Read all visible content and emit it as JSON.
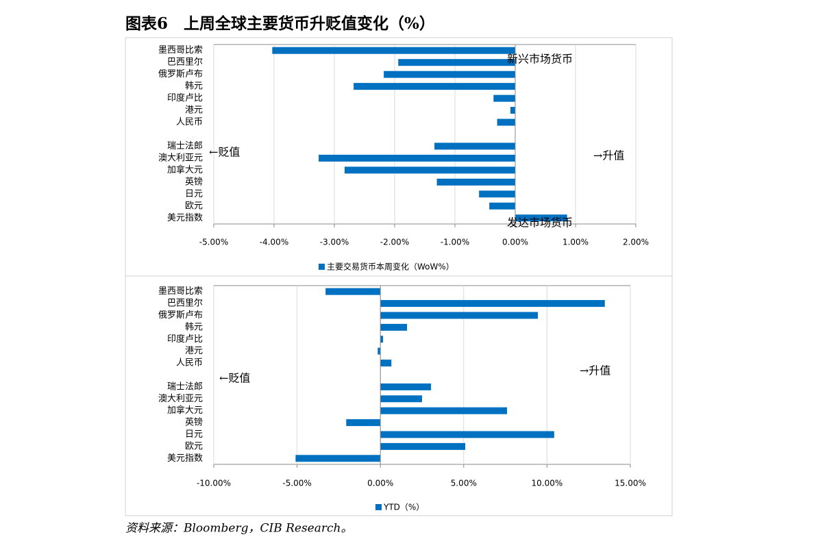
{
  "title": "图表6　上周全球主要货币升贬值变化（%）",
  "source": "资料来源：Bloomberg，CIB Research。",
  "chart_data": [
    {
      "type": "hbar",
      "categories": [
        "墨西哥比索",
        "巴西里尔",
        "俄罗斯卢布",
        "韩元",
        "印度卢比",
        "港元",
        "人民币",
        null,
        "瑞士法郎",
        "澳大利亚元",
        "加拿大元",
        "英镑",
        "日元",
        "欧元",
        "美元指数"
      ],
      "series": [
        {
          "name": "主要交易货币本周变化（WoW%）",
          "color": "#0070c0",
          "values": [
            -4.03,
            -1.94,
            -2.18,
            -2.68,
            -0.36,
            -0.08,
            -0.3,
            null,
            -1.34,
            -3.26,
            -2.83,
            -1.3,
            -0.6,
            -0.43,
            0.86
          ]
        }
      ],
      "xlim": [
        -5,
        2
      ],
      "xticks": [
        {
          "value": -5,
          "label": "-5.00%"
        },
        {
          "value": -4,
          "label": "-4.00%"
        },
        {
          "value": -3,
          "label": "-3.00%"
        },
        {
          "value": -2,
          "label": "-2.00%"
        },
        {
          "value": -1,
          "label": "-1.00%"
        },
        {
          "value": 0,
          "label": "0.00%"
        },
        {
          "value": 1,
          "label": "1.00%"
        },
        {
          "value": 2,
          "label": "2.00%"
        }
      ],
      "grid": true,
      "annotations": [
        "新兴市场货币",
        "发达市场货币",
        "←贬值",
        "→升值"
      ]
    },
    {
      "type": "hbar",
      "categories": [
        "墨西哥比索",
        "巴西里尔",
        "俄罗斯卢布",
        "韩元",
        "印度卢比",
        "港元",
        "人民币",
        null,
        "瑞士法郎",
        "澳大利亚元",
        "加拿大元",
        "英镑",
        "日元",
        "欧元",
        "美元指数"
      ],
      "series": [
        {
          "name": "YTD（%）",
          "color": "#0070c0",
          "values": [
            -3.29,
            13.47,
            9.45,
            1.6,
            0.16,
            -0.16,
            0.66,
            null,
            3.04,
            2.5,
            7.6,
            -2.05,
            10.43,
            5.09,
            -5.09
          ]
        }
      ],
      "xlim": [
        -10,
        15
      ],
      "xticks": [
        {
          "value": -10,
          "label": "-10.00%"
        },
        {
          "value": -5,
          "label": "-5.00%"
        },
        {
          "value": 0,
          "label": "0.00%"
        },
        {
          "value": 5,
          "label": "5.00%"
        },
        {
          "value": 10,
          "label": "10.00%"
        },
        {
          "value": 15,
          "label": "15.00%"
        }
      ],
      "grid": true,
      "annotations": [
        "←贬值",
        "→升值"
      ]
    }
  ]
}
